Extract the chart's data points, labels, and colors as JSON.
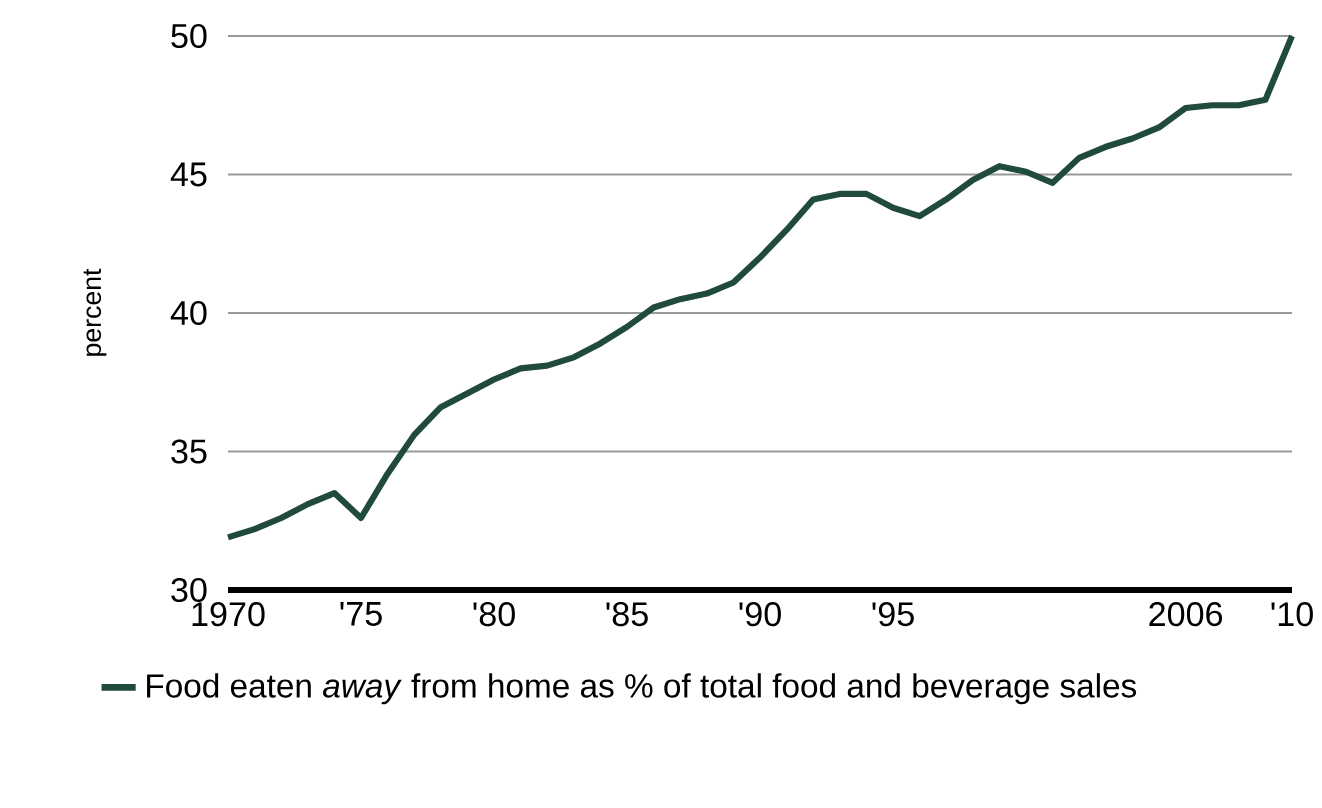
{
  "chart_data": {
    "type": "line",
    "ylabel": "percent",
    "x": [
      1970,
      1971,
      1972,
      1973,
      1974,
      1975,
      1976,
      1977,
      1978,
      1979,
      1980,
      1981,
      1982,
      1983,
      1984,
      1985,
      1986,
      1987,
      1988,
      1989,
      1990,
      1991,
      1992,
      1993,
      1994,
      1995,
      1996,
      1997,
      1998,
      1999,
      2000,
      2001,
      2002,
      2003,
      2004,
      2005,
      2006,
      2007,
      2008,
      2009,
      2010
    ],
    "series": [
      {
        "name": "Food eaten *away* from home as % of total food and beverage sales",
        "color": "#1f4a3d",
        "values": [
          31.9,
          32.2,
          32.6,
          33.1,
          33.5,
          32.6,
          34.2,
          35.6,
          36.6,
          37.1,
          37.6,
          38.0,
          38.1,
          38.4,
          38.9,
          39.5,
          40.2,
          40.5,
          40.7,
          41.1,
          42.0,
          43.0,
          44.1,
          44.3,
          44.3,
          43.8,
          43.5,
          44.1,
          44.8,
          45.3,
          45.1,
          44.7,
          45.6,
          46.0,
          46.3,
          46.7,
          47.4,
          47.5,
          47.5,
          47.7,
          50.0
        ]
      }
    ],
    "xlim": [
      1970,
      2010
    ],
    "ylim": [
      30,
      50
    ],
    "xticks": [
      {
        "value": 1970,
        "label": "1970"
      },
      {
        "value": 1975,
        "label": "'75"
      },
      {
        "value": 1980,
        "label": "'80"
      },
      {
        "value": 1985,
        "label": "'85"
      },
      {
        "value": 1990,
        "label": "'90"
      },
      {
        "value": 1995,
        "label": "'95"
      },
      {
        "value": 2006,
        "label": "2006"
      },
      {
        "value": 2010,
        "label": "'10"
      }
    ],
    "yticks": [
      30,
      35,
      40,
      45,
      50
    ],
    "grid": "y",
    "legend": "bottom",
    "marker": "none",
    "line_style": "solid"
  }
}
